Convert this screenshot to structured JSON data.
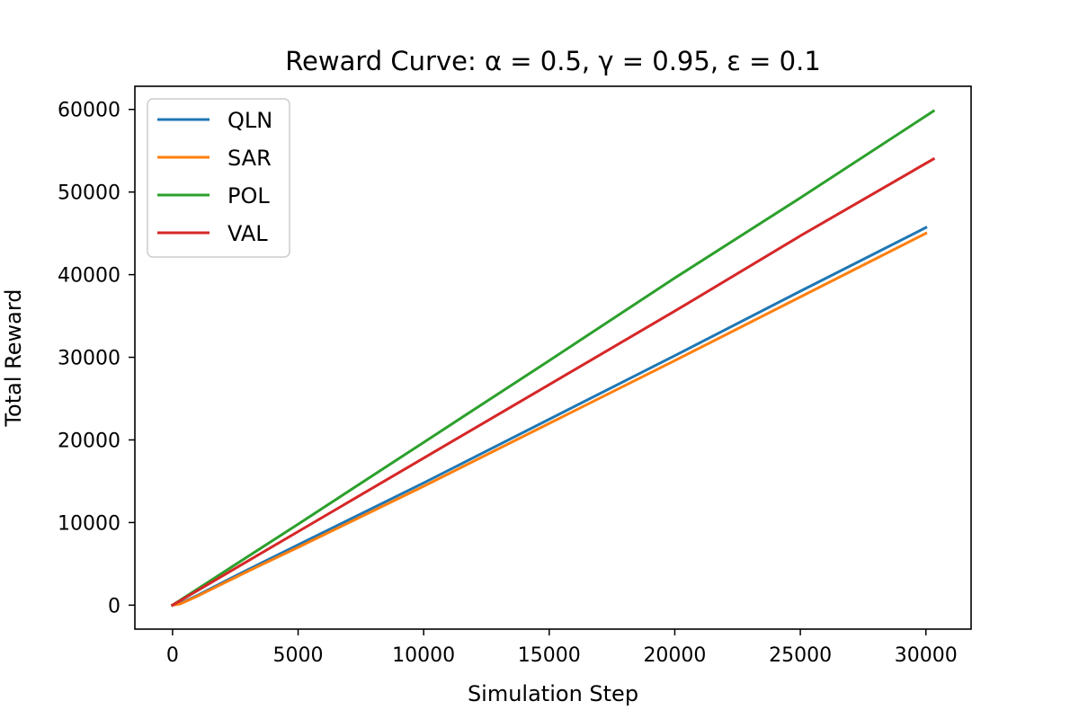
{
  "chart_data": {
    "type": "line",
    "title": "Reward Curve: α = 0.5, γ = 0.95, ε = 0.1",
    "xlabel": "Simulation Step",
    "ylabel": "Total Reward",
    "xlim": [
      -1500,
      31800
    ],
    "ylim": [
      -2900,
      62800
    ],
    "xticks": [
      0,
      5000,
      10000,
      15000,
      20000,
      25000,
      30000
    ],
    "yticks": [
      0,
      10000,
      20000,
      30000,
      40000,
      50000,
      60000
    ],
    "grid": false,
    "legend_position": "upper-left",
    "series": [
      {
        "name": "QLN",
        "color": "#1f77b4",
        "x": [
          0,
          300,
          1000,
          3000,
          5000,
          10000,
          15000,
          20000,
          25000,
          30000
        ],
        "y": [
          0,
          200,
          1200,
          4300,
          7300,
          14800,
          22500,
          30200,
          38000,
          45700
        ]
      },
      {
        "name": "SAR",
        "color": "#ff7f0e",
        "x": [
          0,
          300,
          1000,
          3000,
          5000,
          10000,
          15000,
          20000,
          25000,
          30000
        ],
        "y": [
          0,
          150,
          1100,
          4100,
          7000,
          14400,
          22000,
          29600,
          37300,
          45000
        ]
      },
      {
        "name": "POL",
        "color": "#2ca02c",
        "x": [
          0,
          5000,
          10000,
          15000,
          20000,
          25000,
          30300
        ],
        "y": [
          0,
          9800,
          19700,
          29600,
          39600,
          49300,
          59800
        ]
      },
      {
        "name": "VAL",
        "color": "#d62728",
        "x": [
          0,
          5000,
          10000,
          15000,
          20000,
          25000,
          30300
        ],
        "y": [
          0,
          8900,
          17800,
          26700,
          35600,
          44700,
          54000
        ]
      }
    ]
  }
}
